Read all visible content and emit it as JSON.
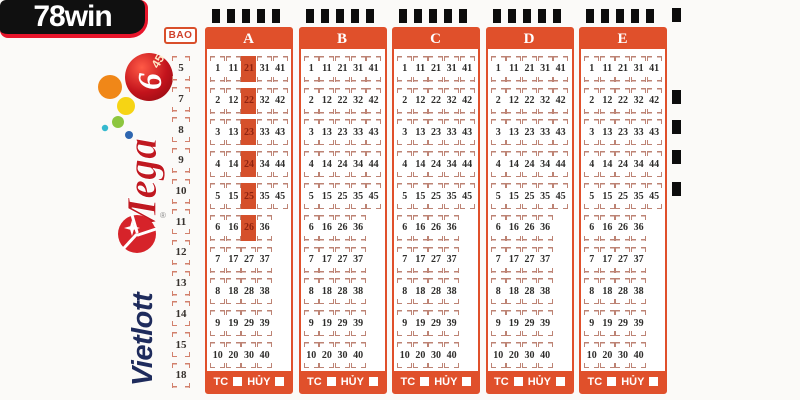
{
  "branding": {
    "site": "78win",
    "mega_word": "Mega",
    "mega_six": "6",
    "mega_fortyfive": "45",
    "vietlott": "Vietlott",
    "registered_mark": "®"
  },
  "slip": {
    "bao_title": "BAO",
    "bao_labels": [
      "5",
      "7",
      "8",
      "9",
      "10",
      "11",
      "12",
      "13",
      "14",
      "15",
      "18"
    ],
    "columns": [
      {
        "label": "A",
        "filled": [
          21,
          22,
          23,
          24,
          25,
          26
        ]
      },
      {
        "label": "B",
        "filled": []
      },
      {
        "label": "C",
        "filled": []
      },
      {
        "label": "D",
        "filled": []
      },
      {
        "label": "E",
        "filled": []
      }
    ],
    "number_rows": [
      [
        1,
        11,
        21,
        31,
        41
      ],
      [
        2,
        12,
        22,
        32,
        42
      ],
      [
        3,
        13,
        23,
        33,
        43
      ],
      [
        4,
        14,
        24,
        34,
        44
      ],
      [
        5,
        15,
        25,
        35,
        45
      ],
      [
        6,
        16,
        26,
        36
      ],
      [
        7,
        17,
        27,
        37
      ],
      [
        8,
        18,
        28,
        38
      ],
      [
        9,
        19,
        29,
        39
      ],
      [
        10,
        20,
        30,
        40
      ]
    ],
    "footer": {
      "tc_label": "TC",
      "huy_label": "HỦY"
    },
    "timing_marks": {
      "top_per_panel": 5,
      "right_side": 4,
      "top_right": 1
    }
  },
  "colors": {
    "accent_orange": "#E0502B",
    "filled_cell": "#D5502B",
    "filled_number": "#8F2310",
    "bracket_pink": "#BD8374",
    "mega_red": "#C01820",
    "vietlott_navy": "#1E2B5C",
    "vietlott_red": "#D6232A",
    "mark_black": "#0C0C0C"
  }
}
